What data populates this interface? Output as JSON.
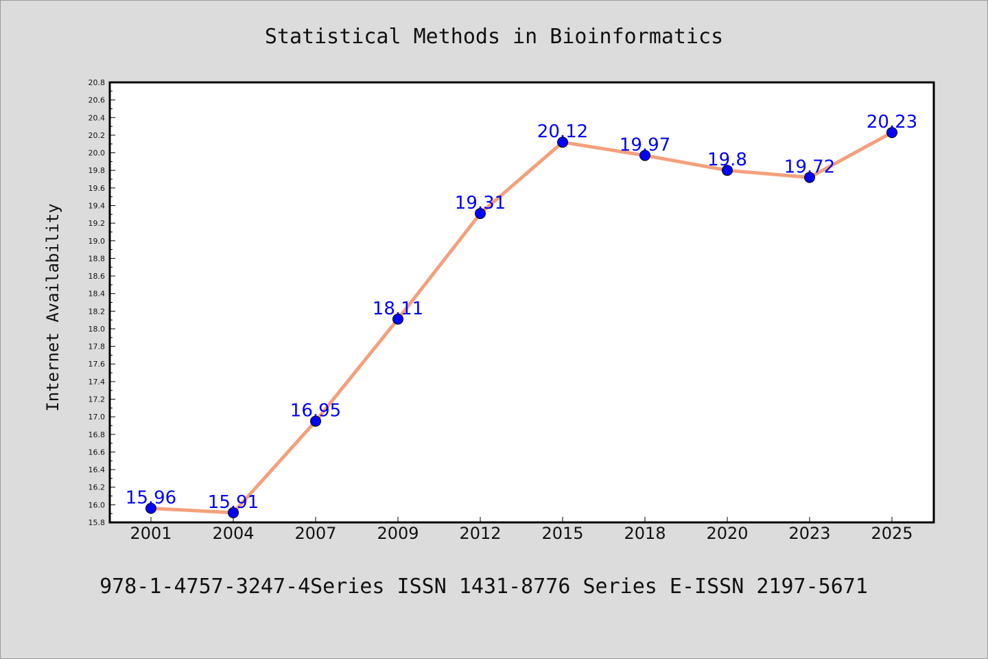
{
  "chart_data": {
    "type": "line",
    "title": "Statistical Methods in Bioinformatics",
    "xlabel": "",
    "ylabel": "Internet Availability",
    "categories": [
      "2001",
      "2004",
      "2007",
      "2009",
      "2012",
      "2015",
      "2018",
      "2020",
      "2023",
      "2025"
    ],
    "series": [
      {
        "values": [
          15.96,
          15.91,
          16.95,
          18.11,
          19.31,
          20.12,
          19.97,
          19.8,
          19.72,
          20.23
        ],
        "data_labels": [
          "15.96",
          "15.91",
          "16.95",
          "18.11",
          "19.31",
          "20.12",
          "19.97",
          "19.8",
          "19.72",
          "20.23"
        ],
        "line_color": "#f4a07c",
        "marker_color": "#0000ff",
        "label_color": "#0000ff"
      }
    ],
    "ylim": [
      15.8,
      20.8
    ],
    "yticks": [
      "15.8",
      "16.0",
      "16.2",
      "16.4",
      "16.6",
      "16.8",
      "17.0",
      "17.2",
      "17.4",
      "17.6",
      "17.8",
      "18.0",
      "18.2",
      "18.4",
      "18.6",
      "18.8",
      "19.0",
      "19.2",
      "19.4",
      "19.6",
      "19.8",
      "20.0",
      "20.2",
      "20.4",
      "20.6",
      "20.8"
    ],
    "grid": false,
    "legend": "none"
  },
  "footer_text": "978-1-4757-3247-4Series ISSN 1431-8776 Series E-ISSN 2197-5671",
  "colors": {
    "background": "#dcdcdc",
    "plot_background": "#ffffff"
  }
}
